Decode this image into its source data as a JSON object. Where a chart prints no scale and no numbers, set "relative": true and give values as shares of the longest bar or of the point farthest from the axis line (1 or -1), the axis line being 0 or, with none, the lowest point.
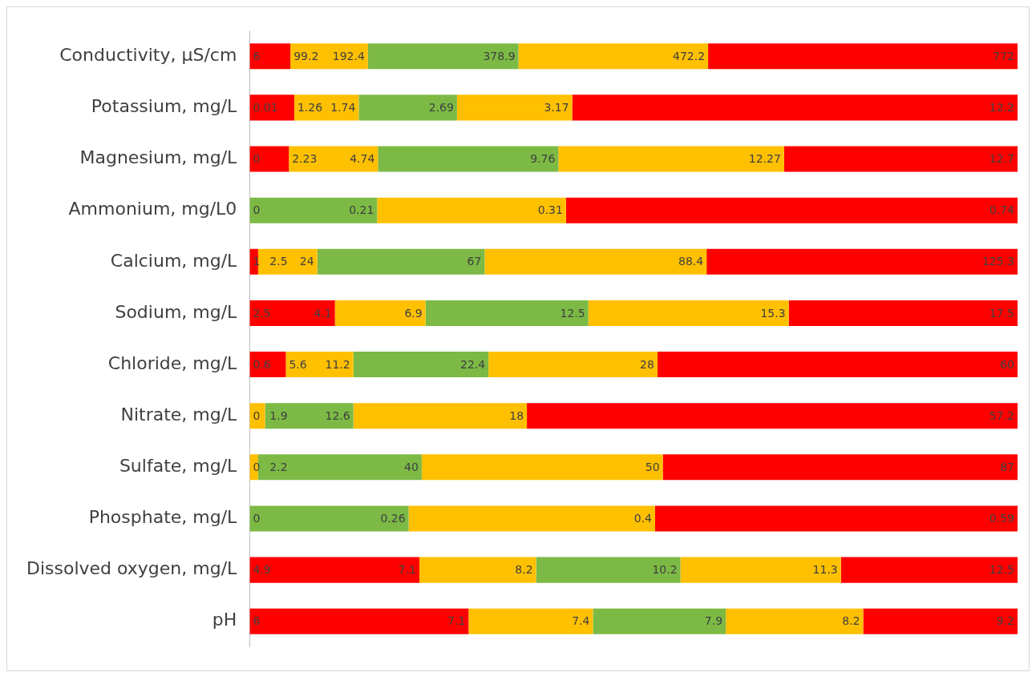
{
  "chart_data": {
    "type": "bar",
    "orientation": "horizontal",
    "stacked": true,
    "relative": true,
    "legend": false,
    "categories": [
      "Conductivity, µS/cm",
      "Potassium, mg/L",
      "Magnesium, mg/L",
      "Ammonium, mg/L0",
      "Calcium, mg/L",
      "Sodium, mg/L",
      "Chloride, mg/L",
      "Nitrate, mg/L",
      "Sulfate, mg/L",
      "Phosphate, mg/L",
      "Dissolved oxygen, mg/L",
      "pH"
    ],
    "series": [
      {
        "values": [
          0.053,
          0.058,
          0.051,
          0.166,
          0.011,
          0.111,
          0.047,
          0.02,
          0.011,
          0.207,
          0.221,
          0.285
        ],
        "colors": [
          "#ff0000",
          "#ff0000",
          "#ff0000",
          "#7cba45",
          "#ff0000",
          "#ff0000",
          "#ff0000",
          "#ffc000",
          "#ffc000",
          "#7cba45",
          "#ff0000",
          "#ff0000"
        ]
      },
      {
        "values": [
          0.101,
          0.084,
          0.116,
          0.246,
          0.077,
          0.118,
          0.088,
          0.115,
          0.213,
          0.321,
          0.152,
          0.162
        ],
        "colors": [
          "#ffc000",
          "#ffc000",
          "#ffc000",
          "#ffc000",
          "#ffc000",
          "#ffc000",
          "#ffc000",
          "#7cba45",
          "#7cba45",
          "#ffc000",
          "#ffc000",
          "#ffc000"
        ]
      },
      {
        "values": [
          0.196,
          0.128,
          0.235,
          0.588,
          0.218,
          0.212,
          0.176,
          0.226,
          0.314,
          0.472,
          0.188,
          0.173
        ],
        "colors": [
          "#7cba45",
          "#7cba45",
          "#7cba45",
          "#ff0000",
          "#7cba45",
          "#7cba45",
          "#7cba45",
          "#ffc000",
          "#ffc000",
          "#ff0000",
          "#7cba45",
          "#7cba45"
        ]
      },
      {
        "values": [
          0.247,
          0.15,
          0.294,
          null,
          0.289,
          0.261,
          0.22,
          0.639,
          0.462,
          null,
          0.209,
          0.179
        ],
        "colors": [
          "#ffc000",
          "#ffc000",
          "#ffc000",
          "#ffc000",
          "#ffc000",
          "#ffc000",
          "#ffc000",
          "#ff0000",
          "#ff0000",
          "#ffc000",
          "#ffc000",
          "#ffc000"
        ]
      },
      {
        "values": [
          0.403,
          0.58,
          0.304,
          null,
          0.405,
          0.298,
          0.469,
          null,
          null,
          null,
          0.23,
          0.201
        ],
        "colors": [
          "#ff0000",
          "#ff0000",
          "#ff0000",
          "#ff0000",
          "#ff0000",
          "#ff0000",
          "#ff0000",
          "#ff0000",
          "#ff0000",
          "#ff0000",
          "#ff0000",
          "#ff0000"
        ]
      }
    ],
    "annotations": [
      {
        "text": "6",
        "x": 0,
        "y": "Conductivity, µS/cm"
      },
      {
        "text": "99.2",
        "x": 0.053,
        "y": "Conductivity, µS/cm"
      },
      {
        "text": "192.4",
        "x": 0.154,
        "y": "Conductivity, µS/cm"
      },
      {
        "text": "378.9",
        "x": 0.35,
        "y": "Conductivity, µS/cm"
      },
      {
        "text": "472.2",
        "x": 0.597,
        "y": "Conductivity, µS/cm"
      },
      {
        "text": "772",
        "x": 1,
        "y": "Conductivity, µS/cm"
      },
      {
        "text": "0.01",
        "x": 0,
        "y": "Potassium, mg/L"
      },
      {
        "text": "1.26",
        "x": 0.058,
        "y": "Potassium, mg/L"
      },
      {
        "text": "1.74",
        "x": 0.142,
        "y": "Potassium, mg/L"
      },
      {
        "text": "2.69",
        "x": 0.27,
        "y": "Potassium, mg/L"
      },
      {
        "text": "3.17",
        "x": 0.42,
        "y": "Potassium, mg/L"
      },
      {
        "text": "12.2",
        "x": 1,
        "y": "Potassium, mg/L"
      },
      {
        "text": "0",
        "x": 0,
        "y": "Magnesium, mg/L"
      },
      {
        "text": "2.23",
        "x": 0.051,
        "y": "Magnesium, mg/L"
      },
      {
        "text": "4.74",
        "x": 0.167,
        "y": "Magnesium, mg/L"
      },
      {
        "text": "9.76",
        "x": 0.402,
        "y": "Magnesium, mg/L"
      },
      {
        "text": "12.27",
        "x": 0.696,
        "y": "Magnesium, mg/L"
      },
      {
        "text": "12.7",
        "x": 1,
        "y": "Magnesium, mg/L"
      },
      {
        "text": "0",
        "x": 0,
        "y": "Ammonium, mg/L0"
      },
      {
        "text": "0.21",
        "x": 0.166,
        "y": "Ammonium, mg/L0"
      },
      {
        "text": "0.31",
        "x": 0.412,
        "y": "Ammonium, mg/L0"
      },
      {
        "text": "0.74",
        "x": 1,
        "y": "Ammonium, mg/L0"
      },
      {
        "text": "1",
        "x": 0,
        "y": "Calcium, mg/L"
      },
      {
        "text": "2.5",
        "x": 0.011,
        "y": "Calcium, mg/L"
      },
      {
        "text": "24",
        "x": 0.088,
        "y": "Calcium, mg/L"
      },
      {
        "text": "67",
        "x": 0.306,
        "y": "Calcium, mg/L"
      },
      {
        "text": "88.4",
        "x": 0.595,
        "y": "Calcium, mg/L"
      },
      {
        "text": "125.3",
        "x": 1,
        "y": "Calcium, mg/L"
      },
      {
        "text": "2.5",
        "x": 0,
        "y": "Sodium, mg/L"
      },
      {
        "text": "4.1",
        "x": 0.111,
        "y": "Sodium, mg/L"
      },
      {
        "text": "6.9",
        "x": 0.229,
        "y": "Sodium, mg/L"
      },
      {
        "text": "12.5",
        "x": 0.441,
        "y": "Sodium, mg/L"
      },
      {
        "text": "15.3",
        "x": 0.702,
        "y": "Sodium, mg/L"
      },
      {
        "text": "17.5",
        "x": 1,
        "y": "Sodium, mg/L"
      },
      {
        "text": "0.6",
        "x": 0,
        "y": "Chloride, mg/L"
      },
      {
        "text": "5.6",
        "x": 0.047,
        "y": "Chloride, mg/L"
      },
      {
        "text": "11.2",
        "x": 0.135,
        "y": "Chloride, mg/L"
      },
      {
        "text": "22.4",
        "x": 0.311,
        "y": "Chloride, mg/L"
      },
      {
        "text": "28",
        "x": 0.531,
        "y": "Chloride, mg/L"
      },
      {
        "text": "60",
        "x": 1,
        "y": "Chloride, mg/L"
      },
      {
        "text": "0",
        "x": 0,
        "y": "Nitrate, mg/L"
      },
      {
        "text": "1.9",
        "x": 0.02,
        "y": "Nitrate, mg/L"
      },
      {
        "text": "12.6",
        "x": 0.135,
        "y": "Nitrate, mg/L"
      },
      {
        "text": "18",
        "x": 0.361,
        "y": "Nitrate, mg/L"
      },
      {
        "text": "57.2",
        "x": 1,
        "y": "Nitrate, mg/L"
      },
      {
        "text": "0",
        "x": 0,
        "y": "Sulfate, mg/L"
      },
      {
        "text": "2.2",
        "x": 0.011,
        "y": "Sulfate, mg/L"
      },
      {
        "text": "40",
        "x": 0.224,
        "y": "Sulfate, mg/L"
      },
      {
        "text": "50",
        "x": 0.538,
        "y": "Sulfate, mg/L"
      },
      {
        "text": "87",
        "x": 1,
        "y": "Sulfate, mg/L"
      },
      {
        "text": "0",
        "x": 0,
        "y": "Phosphate, mg/L"
      },
      {
        "text": "0.26",
        "x": 0.207,
        "y": "Phosphate, mg/L"
      },
      {
        "text": "0.4",
        "x": 0.528,
        "y": "Phosphate, mg/L"
      },
      {
        "text": "0.59",
        "x": 1,
        "y": "Phosphate, mg/L"
      },
      {
        "text": "4.9",
        "x": 0,
        "y": "Dissolved oxygen, mg/L"
      },
      {
        "text": "7.1",
        "x": 0.221,
        "y": "Dissolved oxygen, mg/L"
      },
      {
        "text": "8.2",
        "x": 0.373,
        "y": "Dissolved oxygen, mg/L"
      },
      {
        "text": "10.2",
        "x": 0.561,
        "y": "Dissolved oxygen, mg/L"
      },
      {
        "text": "11.3",
        "x": 0.77,
        "y": "Dissolved oxygen, mg/L"
      },
      {
        "text": "12.5",
        "x": 1,
        "y": "Dissolved oxygen, mg/L"
      },
      {
        "text": "6",
        "x": 0,
        "y": "pH"
      },
      {
        "text": "7.1",
        "x": 0.285,
        "y": "pH"
      },
      {
        "text": "7.4",
        "x": 0.447,
        "y": "pH"
      },
      {
        "text": "7.9",
        "x": 0.62,
        "y": "pH"
      },
      {
        "text": "8.2",
        "x": 0.799,
        "y": "pH"
      },
      {
        "text": "9.2",
        "x": 1,
        "y": "pH"
      }
    ]
  }
}
